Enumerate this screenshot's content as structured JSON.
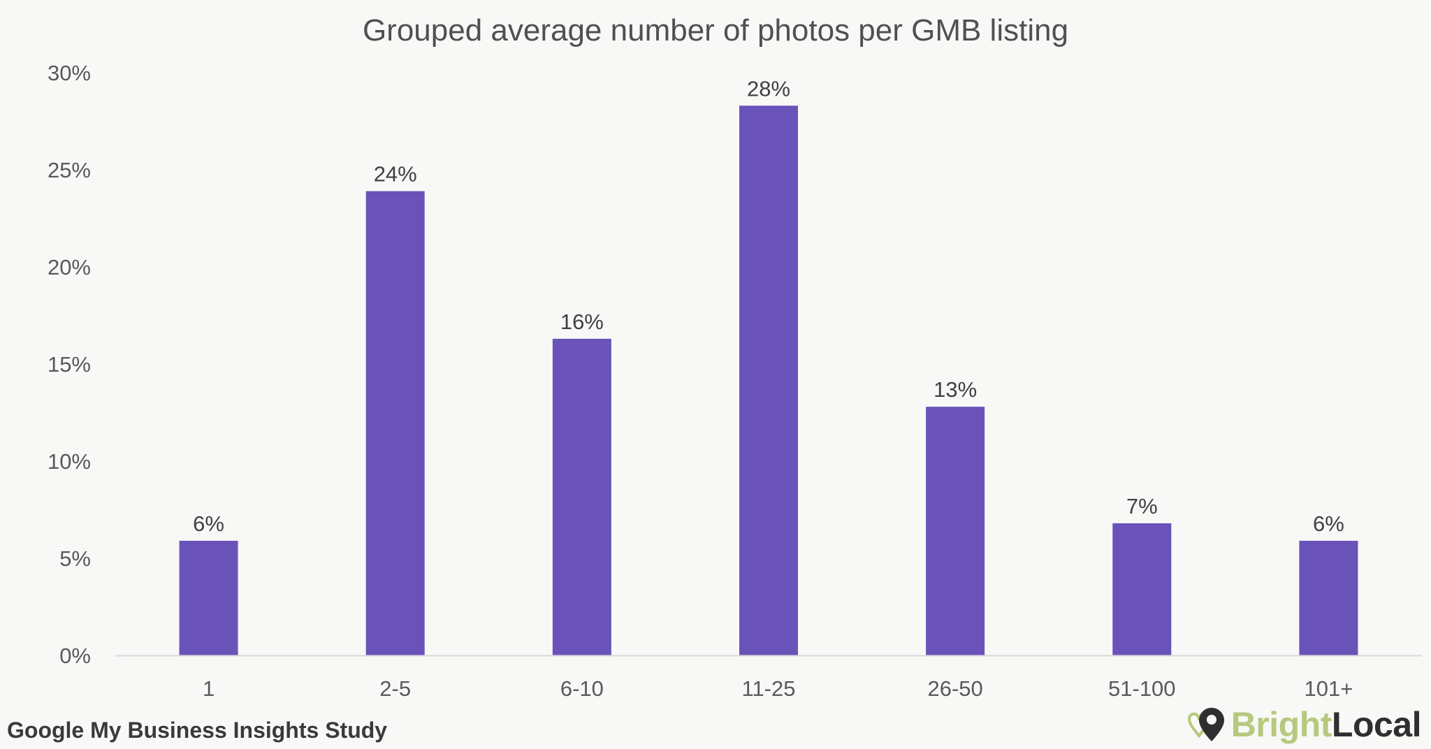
{
  "chart_data": {
    "type": "bar",
    "title": "Grouped average number of photos per GMB listing",
    "categories": [
      "1",
      "2-5",
      "6-10",
      "11-25",
      "26-50",
      "51-100",
      "101+"
    ],
    "values": [
      5.9,
      23.9,
      16.3,
      28.3,
      12.8,
      6.8,
      5.9
    ],
    "data_labels": [
      "6%",
      "24%",
      "16%",
      "28%",
      "13%",
      "7%",
      "6%"
    ],
    "y_ticks": [
      0,
      5,
      10,
      15,
      20,
      25,
      30
    ],
    "y_tick_labels": [
      "0%",
      "5%",
      "10%",
      "15%",
      "20%",
      "25%",
      "30%"
    ],
    "ylim": [
      0,
      30
    ],
    "xlabel": "",
    "ylabel": "",
    "grid": false,
    "legend": "none",
    "bar_color": "#6953b9"
  },
  "footer": {
    "study": "Google My Business Insights Study",
    "brand_part1": "Bright",
    "brand_part2": "Local"
  },
  "icons": {
    "brand": "map-pin-heart-icon"
  }
}
